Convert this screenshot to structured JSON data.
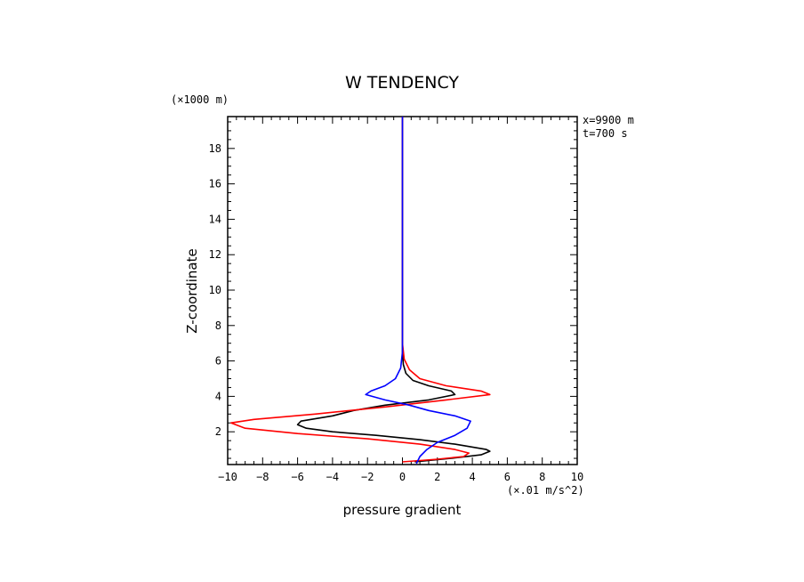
{
  "chart_data": {
    "type": "line",
    "title": "W TENDENCY",
    "xlabel": "pressure gradient",
    "ylabel": "Z-coordinate",
    "x_unit": "(×.01 m/s^2)",
    "y_unit": "(×1000 m)",
    "annotations": [
      "x=9900 m",
      "t=700 s"
    ],
    "xlim": [
      -10,
      10
    ],
    "ylim": [
      0.15,
      19.8
    ],
    "x_ticks": [
      "−10",
      "−8",
      "−6",
      "−4",
      "−2",
      "0",
      "2",
      "4",
      "6",
      "8",
      "10"
    ],
    "y_ticks": [
      "2",
      "4",
      "6",
      "8",
      "10",
      "12",
      "14",
      "16",
      "18"
    ],
    "grid": false,
    "series": [
      {
        "color": "#000000",
        "points": [
          [
            0.7,
            0.3
          ],
          [
            2.8,
            0.5
          ],
          [
            4.5,
            0.7
          ],
          [
            5.0,
            0.9
          ],
          [
            4.8,
            1.0
          ],
          [
            3.0,
            1.3
          ],
          [
            1.0,
            1.55
          ],
          [
            -1.5,
            1.8
          ],
          [
            -4.0,
            2.0
          ],
          [
            -5.5,
            2.2
          ],
          [
            -6.0,
            2.4
          ],
          [
            -5.8,
            2.6
          ],
          [
            -4.0,
            2.9
          ],
          [
            -2.8,
            3.2
          ],
          [
            -1.0,
            3.5
          ],
          [
            1.5,
            3.8
          ],
          [
            3.0,
            4.1
          ],
          [
            2.8,
            4.3
          ],
          [
            1.5,
            4.6
          ],
          [
            0.6,
            4.9
          ],
          [
            0.2,
            5.3
          ],
          [
            0.05,
            5.8
          ],
          [
            0.0,
            6.5
          ],
          [
            0.0,
            8.0
          ],
          [
            0.0,
            19.8
          ]
        ]
      },
      {
        "color": "#ff0000",
        "points": [
          [
            0.0,
            0.3
          ],
          [
            2.0,
            0.45
          ],
          [
            3.5,
            0.6
          ],
          [
            3.8,
            0.8
          ],
          [
            3.0,
            1.0
          ],
          [
            1.0,
            1.3
          ],
          [
            -2.0,
            1.6
          ],
          [
            -6.0,
            1.9
          ],
          [
            -9.0,
            2.2
          ],
          [
            -9.8,
            2.5
          ],
          [
            -8.5,
            2.7
          ],
          [
            -5.0,
            3.0
          ],
          [
            -1.0,
            3.4
          ],
          [
            2.5,
            3.8
          ],
          [
            5.0,
            4.1
          ],
          [
            4.5,
            4.3
          ],
          [
            2.5,
            4.6
          ],
          [
            1.0,
            5.0
          ],
          [
            0.4,
            5.5
          ],
          [
            0.1,
            6.1
          ],
          [
            0.0,
            7.0
          ],
          [
            0.0,
            19.8
          ]
        ]
      },
      {
        "color": "#0000ff",
        "points": [
          [
            0.8,
            0.2
          ],
          [
            1.0,
            0.6
          ],
          [
            1.4,
            1.0
          ],
          [
            2.0,
            1.4
          ],
          [
            3.0,
            1.8
          ],
          [
            3.7,
            2.2
          ],
          [
            3.9,
            2.6
          ],
          [
            3.0,
            2.9
          ],
          [
            1.5,
            3.2
          ],
          [
            0.4,
            3.5
          ],
          [
            -1.0,
            3.8
          ],
          [
            -2.1,
            4.1
          ],
          [
            -1.8,
            4.3
          ],
          [
            -1.0,
            4.6
          ],
          [
            -0.4,
            5.0
          ],
          [
            -0.1,
            5.6
          ],
          [
            0.0,
            6.5
          ],
          [
            0.0,
            19.8
          ]
        ]
      }
    ]
  }
}
